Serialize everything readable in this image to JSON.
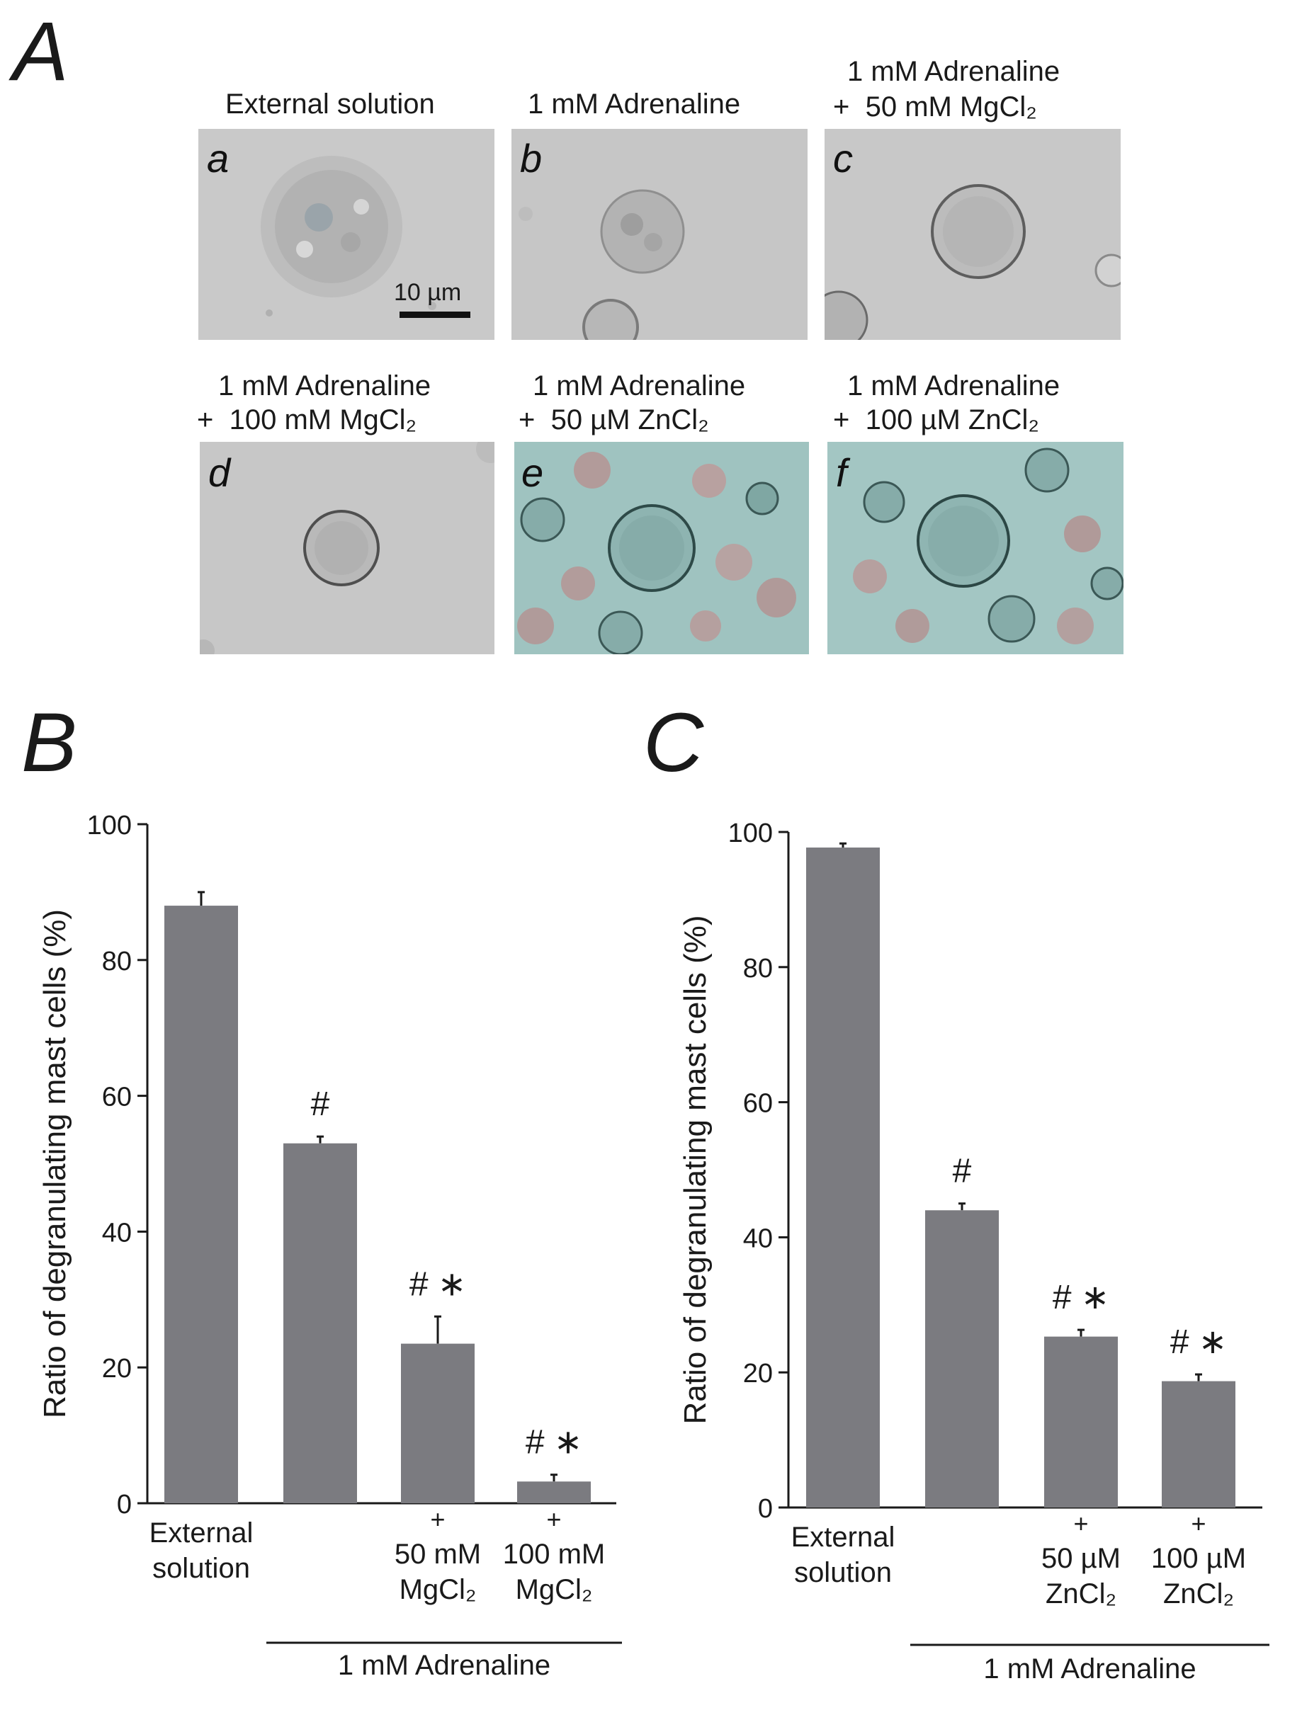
{
  "panel_letters": {
    "a": "A",
    "b": "B",
    "c": "C"
  },
  "micrographs": [
    {
      "id": "a",
      "caption": [
        "External solution"
      ],
      "bg": "#c9c9c9",
      "cell": "granular",
      "scalebar": "10 µm"
    },
    {
      "id": "b",
      "caption": [
        "1 mM Adrenaline"
      ],
      "bg": "#c6c6c6",
      "cell": "granular"
    },
    {
      "id": "c",
      "caption": [
        "1 mM Adrenaline",
        "+  50 mM MgCl₂"
      ],
      "bg": "#c8c8c8",
      "cell": "round"
    },
    {
      "id": "d",
      "caption": [
        "1 mM Adrenaline",
        "+  100 mM MgCl₂"
      ],
      "bg": "#c7c7c7",
      "cell": "round"
    },
    {
      "id": "e",
      "caption": [
        "1 mM Adrenaline",
        "+  50 µM ZnCl₂"
      ],
      "bg": "#9fc3c0",
      "cell": "blood"
    },
    {
      "id": "f",
      "caption": [
        "1 mM Adrenaline",
        "+  100 µM ZnCl₂"
      ],
      "bg": "#a3c6c3",
      "cell": "blood"
    }
  ],
  "colors": {
    "bar": "#7b7b80",
    "axis": "#1a1a1a",
    "teal_bg": "#9fc3c0",
    "gray_bg": "#c8c8c8"
  },
  "chart_data": [
    {
      "panel": "B",
      "type": "bar",
      "ylabel": "Ratio of degranulating mast cells (%)",
      "ylim": [
        0,
        100
      ],
      "yticks": [
        0,
        20,
        40,
        60,
        80,
        100
      ],
      "categories": [
        [
          "External",
          "solution"
        ],
        [],
        [
          "+",
          "50 mM",
          "MgCl₂"
        ],
        [
          "+",
          "100 mM",
          "MgCl₂"
        ]
      ],
      "values": [
        88,
        53,
        23.5,
        3.2
      ],
      "errors": [
        2,
        1,
        4,
        1
      ],
      "annotations": [
        "",
        "#",
        "# ∗",
        "# ∗"
      ],
      "group_label": "1 mM Adrenaline",
      "grid": false
    },
    {
      "panel": "C",
      "type": "bar",
      "ylabel": "Ratio of degranulating mast cells (%)",
      "ylim": [
        0,
        100
      ],
      "yticks": [
        0,
        20,
        40,
        60,
        80,
        100
      ],
      "categories": [
        [
          "External",
          "solution"
        ],
        [],
        [
          "+",
          "50 µM",
          "ZnCl₂"
        ],
        [
          "+",
          "100 µM",
          "ZnCl₂"
        ]
      ],
      "values": [
        97.7,
        44,
        25.3,
        18.7
      ],
      "errors": [
        0.6,
        1,
        1,
        1
      ],
      "annotations": [
        "",
        "#",
        "# ∗",
        "# ∗"
      ],
      "group_label": "1 mM Adrenaline",
      "grid": false
    }
  ]
}
